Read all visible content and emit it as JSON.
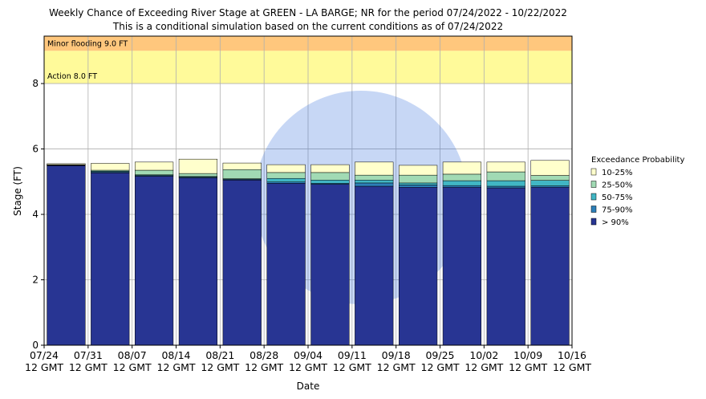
{
  "chart_data": {
    "type": "stacked-bar",
    "title": "Weekly Chance of Exceeding River Stage at GREEN - LA BARGE; NR for the period 07/24/2022 - 10/22/2022",
    "subtitle": "This is a conditional simulation based on the current conditions as of 07/24/2022",
    "x_label": "Date",
    "y_label": "Stage (FT)",
    "legend_title": "Exceedance Probability",
    "xticks": [
      "07/24\n12 GMT",
      "07/31\n12 GMT",
      "08/07\n12 GMT",
      "08/14\n12 GMT",
      "08/21\n12 GMT",
      "08/28\n12 GMT",
      "09/04\n12 GMT",
      "09/11\n12 GMT",
      "09/18\n12 GMT",
      "09/25\n12 GMT",
      "10/02\n12 GMT",
      "10/09\n12 GMT",
      "10/16\n12 GMT"
    ],
    "ylim": [
      0,
      9.45
    ],
    "yticks": [
      0,
      2,
      4,
      6,
      8
    ],
    "grid": true,
    "flood_levels": [
      {
        "label": "Minor flooding 9.0 FT",
        "value": 9,
        "color": "#ffc77d"
      },
      {
        "label": "Action 8.0 FT",
        "value": 8,
        "color": "#fffa9a"
      }
    ],
    "series": [
      {
        "name": "> 90%",
        "color": "#283593",
        "values": [
          5.49,
          5.27,
          5.17,
          5.12,
          5.05,
          4.95,
          4.92,
          4.86,
          4.83,
          4.83,
          4.81,
          4.83
        ]
      },
      {
        "name": "75-90%",
        "color": "#2c7fb8",
        "values": [
          0.01,
          0.03,
          0.02,
          0.02,
          0.02,
          0.04,
          0.03,
          0.1,
          0.07,
          0.05,
          0.05,
          0.04
        ]
      },
      {
        "name": "50-75%",
        "color": "#41b6c4",
        "values": [
          0.01,
          0.02,
          0.02,
          0.02,
          0.02,
          0.11,
          0.1,
          0.09,
          0.06,
          0.15,
          0.17,
          0.17
        ]
      },
      {
        "name": "25-50%",
        "color": "#a1dab4",
        "values": [
          0.01,
          0.03,
          0.14,
          0.09,
          0.28,
          0.18,
          0.23,
          0.15,
          0.24,
          0.2,
          0.27,
          0.15
        ]
      },
      {
        "name": "10-25%",
        "color": "#ffffcc",
        "values": [
          0.03,
          0.21,
          0.25,
          0.44,
          0.2,
          0.24,
          0.24,
          0.4,
          0.3,
          0.37,
          0.3,
          0.46
        ]
      }
    ]
  }
}
